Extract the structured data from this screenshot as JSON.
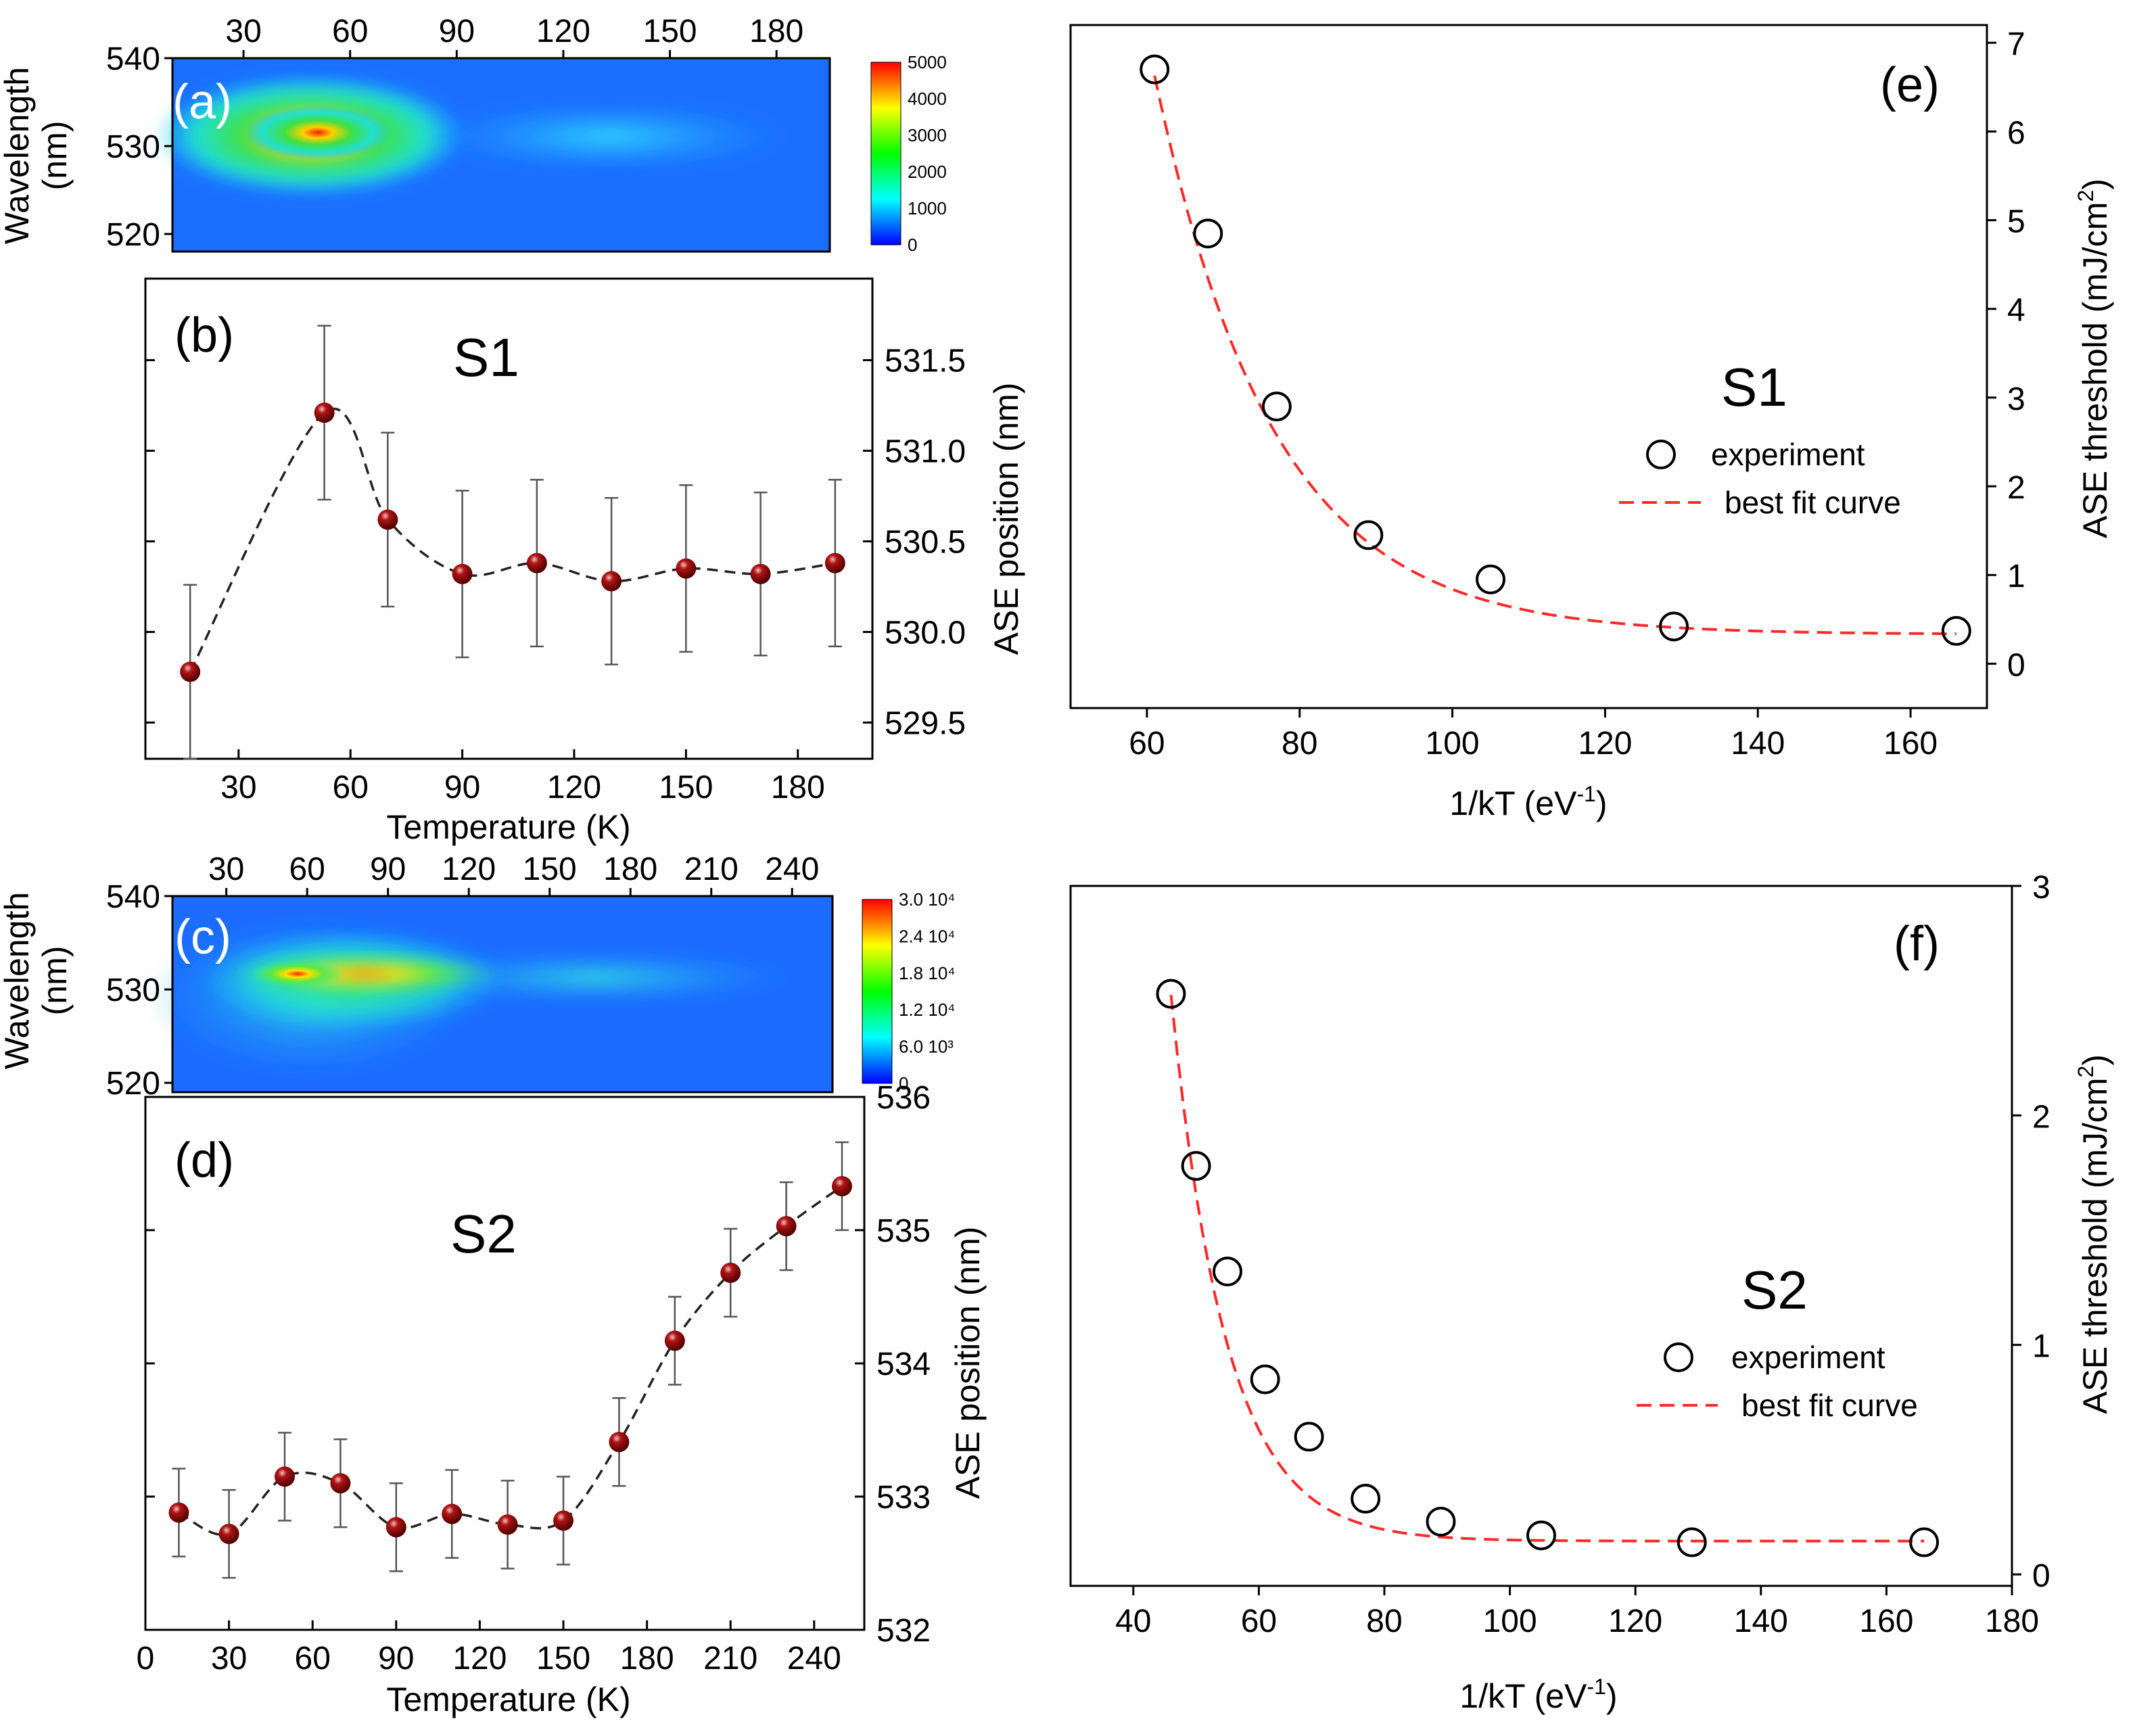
{
  "colors": {
    "curve_fit": "#ff2a2a",
    "marker_fill": "#7a0a0a",
    "dashed_line": "#222222",
    "axis": "#000000"
  },
  "chart_data": [
    {
      "id": "a",
      "type": "heatmap",
      "panel_label": "(a)",
      "top_axis_ticks": [
        30,
        60,
        90,
        120,
        150,
        180
      ],
      "top_axis_range": [
        10,
        195
      ],
      "ylabel": "Wavelength",
      "ylabel_unit": "(nm)",
      "yticks": [
        520,
        530,
        540
      ],
      "ylim": [
        518,
        540
      ],
      "colorbar_ticks": [
        "5000",
        "4000",
        "3000",
        "2000",
        "1000",
        "0"
      ],
      "colorbar_range": [
        0,
        5000
      ],
      "peak": {
        "x": 53,
        "y": 531,
        "value": 5000
      }
    },
    {
      "id": "b",
      "type": "scatter",
      "panel_label": "(b)",
      "series_label": "S1",
      "xlabel": "Temperature (K)",
      "ylabel": "ASE position (nm)",
      "xlim": [
        5,
        200
      ],
      "ylim": [
        529.3,
        531.95
      ],
      "xticks": [
        30,
        60,
        90,
        120,
        150,
        180
      ],
      "yticks": [
        529.5,
        530.0,
        530.5,
        531.0,
        531.5
      ],
      "ytick_labels": [
        "529.5",
        "530.0",
        "530.5",
        "531.0",
        "531.5"
      ],
      "x": [
        17,
        53,
        70,
        90,
        110,
        130,
        150,
        170,
        190
      ],
      "y": [
        529.78,
        531.21,
        530.62,
        530.32,
        530.38,
        530.28,
        530.35,
        530.32,
        530.38
      ],
      "err": [
        0.48,
        0.48,
        0.48,
        0.46,
        0.46,
        0.46,
        0.46,
        0.45,
        0.46
      ],
      "trend": "dashed spline through points"
    },
    {
      "id": "c",
      "type": "heatmap",
      "panel_label": "(c)",
      "top_axis_ticks": [
        30,
        60,
        90,
        120,
        150,
        180,
        210,
        240
      ],
      "top_axis_range": [
        10,
        255
      ],
      "ylabel": "Wavelength",
      "ylabel_unit": "(nm)",
      "yticks": [
        520,
        530,
        540
      ],
      "ylim": [
        519,
        540
      ],
      "colorbar_ticks": [
        "3.0 10⁴",
        "2.4 10⁴",
        "1.8 10⁴",
        "1.2 10⁴",
        "6.0 10³",
        "0"
      ],
      "colorbar_range": [
        0,
        30000
      ],
      "peak": {
        "x": 55,
        "y": 532,
        "value": 30000
      }
    },
    {
      "id": "d",
      "type": "scatter",
      "panel_label": "(d)",
      "series_label": "S2",
      "xlabel": "Temperature (K)",
      "ylabel": "ASE position (nm)",
      "xlim": [
        0,
        258
      ],
      "ylim": [
        532,
        536
      ],
      "xticks": [
        0,
        30,
        60,
        90,
        120,
        150,
        180,
        210,
        240
      ],
      "yticks": [
        532,
        533,
        534,
        535,
        536
      ],
      "x": [
        12,
        30,
        50,
        70,
        90,
        110,
        130,
        150,
        170,
        190,
        210,
        230,
        250
      ],
      "y": [
        532.88,
        532.72,
        533.15,
        533.1,
        532.77,
        532.87,
        532.79,
        532.82,
        533.41,
        534.17,
        534.68,
        535.03,
        535.33
      ],
      "err": [
        0.33,
        0.33,
        0.33,
        0.33,
        0.33,
        0.33,
        0.33,
        0.33,
        0.33,
        0.33,
        0.33,
        0.33,
        0.33
      ],
      "trend": "dashed spline through points"
    },
    {
      "id": "e",
      "type": "scatter",
      "panel_label": "(e)",
      "series_label": "S1",
      "xlabel": "1/kT (eV⁻¹)",
      "ylabel": "ASE threshold (mJ/cm²)",
      "xlim": [
        50,
        170
      ],
      "ylim": [
        -0.5,
        7.2
      ],
      "xticks": [
        60,
        80,
        100,
        120,
        140,
        160
      ],
      "yticks": [
        0,
        1,
        2,
        3,
        4,
        5,
        6,
        7
      ],
      "x": [
        61,
        68,
        77,
        89,
        105,
        129,
        166
      ],
      "y": [
        6.7,
        4.85,
        2.9,
        1.45,
        0.95,
        0.42,
        0.37
      ],
      "fit_label": "best fit curve",
      "marker_label": "experiment",
      "fit": {
        "model": "A*exp(-(x-x0)/t)+c",
        "A": 6.3,
        "x0": 61,
        "t": 15.5,
        "c": 0.33
      }
    },
    {
      "id": "f",
      "type": "scatter",
      "panel_label": "(f)",
      "series_label": "S2",
      "xlabel": "1/kT (eV⁻¹)",
      "ylabel": "ASE threshold (mJ/cm²)",
      "xlim": [
        30,
        180
      ],
      "ylim": [
        -0.05,
        3.0
      ],
      "xticks": [
        40,
        60,
        80,
        100,
        120,
        140,
        160,
        180
      ],
      "yticks": [
        0,
        1,
        2,
        3
      ],
      "x": [
        46,
        50,
        55,
        61,
        68,
        77,
        89,
        105,
        129,
        166
      ],
      "y": [
        2.53,
        1.78,
        1.32,
        0.85,
        0.6,
        0.33,
        0.23,
        0.17,
        0.14,
        0.14
      ],
      "fit_label": "best fit curve",
      "marker_label": "experiment",
      "fit": {
        "model": "A*exp(-(x-x0)/t)+c",
        "A": 2.38,
        "x0": 46,
        "t": 8.8,
        "c": 0.145
      }
    }
  ]
}
